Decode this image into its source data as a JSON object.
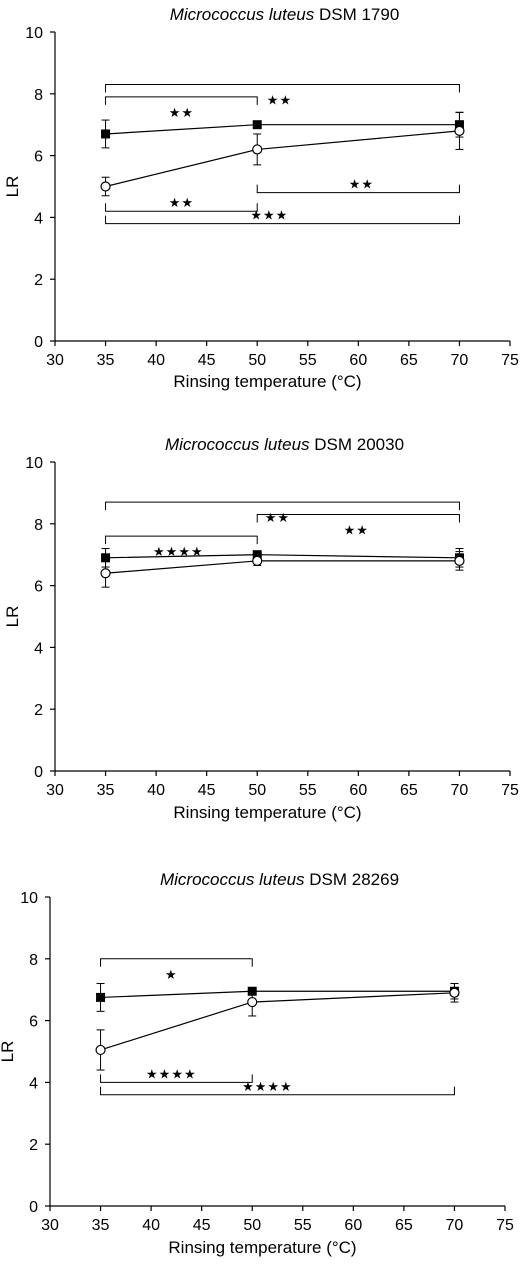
{
  "chart_data": [
    {
      "type": "line",
      "title_italic": "Micrococcus luteus",
      "title_rest": " DSM 1790",
      "xlabel": "Rinsing temperature (°C)",
      "ylabel": "LR",
      "xlim": [
        30,
        75
      ],
      "ylim": [
        0,
        10
      ],
      "xticks": [
        30,
        35,
        40,
        45,
        50,
        55,
        60,
        65,
        70,
        75
      ],
      "yticks": [
        0,
        2,
        4,
        6,
        8,
        10
      ],
      "grid": false,
      "x": [
        35,
        50,
        70
      ],
      "series": [
        {
          "marker": "filled-square",
          "values": [
            6.7,
            7.0,
            7.0
          ],
          "err": [
            0.45,
            0.1,
            0.4
          ]
        },
        {
          "marker": "open-circle",
          "values": [
            5.0,
            6.2,
            6.8
          ],
          "err": [
            0.3,
            0.5,
            0.6
          ]
        }
      ],
      "significance": [
        {
          "from": 35,
          "to": 70,
          "y": 8.3,
          "dir": "down",
          "stars": "★★",
          "star_x": 52.2
        },
        {
          "from": 35,
          "to": 50,
          "y": 7.9,
          "dir": "down",
          "stars": "★★",
          "star_x": 42.5
        },
        {
          "from": 50,
          "to": 70,
          "y": 4.8,
          "dir": "up",
          "stars": "★★",
          "star_x": 60.3
        },
        {
          "from": 35,
          "to": 50,
          "y": 4.2,
          "dir": "up",
          "stars": "★★",
          "star_x": 42.5
        },
        {
          "from": 35,
          "to": 70,
          "y": 3.8,
          "dir": "up",
          "stars": "★★★",
          "star_x": 51.2
        }
      ]
    },
    {
      "type": "line",
      "title_italic": "Micrococcus luteus",
      "title_rest": " DSM 20030",
      "xlabel": "Rinsing temperature (°C)",
      "ylabel": "LR",
      "xlim": [
        30,
        75
      ],
      "ylim": [
        0,
        10
      ],
      "xticks": [
        30,
        35,
        40,
        45,
        50,
        55,
        60,
        65,
        70,
        75
      ],
      "yticks": [
        0,
        2,
        4,
        6,
        8,
        10
      ],
      "grid": false,
      "x": [
        35,
        50,
        70
      ],
      "series": [
        {
          "marker": "filled-square",
          "values": [
            6.9,
            7.0,
            6.9
          ],
          "err": [
            0.3,
            0.1,
            0.3
          ]
        },
        {
          "marker": "open-circle",
          "values": [
            6.4,
            6.8,
            6.8
          ],
          "err": [
            0.45,
            0.15,
            0.3
          ]
        }
      ],
      "significance": [
        {
          "from": 35,
          "to": 70,
          "y": 8.7,
          "dir": "down",
          "stars": "★★",
          "star_x": 52.0
        },
        {
          "from": 35,
          "to": 50,
          "y": 7.6,
          "dir": "down",
          "stars": "★★★★",
          "star_x": 42.2
        },
        {
          "from": 50,
          "to": 70,
          "y": 8.3,
          "dir": "down",
          "stars": "★★",
          "star_x": 59.8
        }
      ]
    },
    {
      "type": "line",
      "title_italic": "Micrococcus luteus",
      "title_rest": " DSM 28269",
      "xlabel": "Rinsing temperature (°C)",
      "ylabel": "LR",
      "xlim": [
        30,
        75
      ],
      "ylim": [
        0,
        10
      ],
      "xticks": [
        30,
        35,
        40,
        45,
        50,
        55,
        60,
        65,
        70,
        75
      ],
      "yticks": [
        0,
        2,
        4,
        6,
        8,
        10
      ],
      "grid": false,
      "x": [
        35,
        50,
        70
      ],
      "series": [
        {
          "marker": "filled-square",
          "values": [
            6.75,
            6.95,
            6.95
          ],
          "err": [
            0.45,
            0.1,
            0.25
          ]
        },
        {
          "marker": "open-circle",
          "values": [
            5.05,
            6.6,
            6.9
          ],
          "err": [
            0.65,
            0.45,
            0.3
          ]
        }
      ],
      "significance": [
        {
          "from": 35,
          "to": 50,
          "y": 8.0,
          "dir": "down",
          "stars": "★",
          "star_x": 42.0
        },
        {
          "from": 35,
          "to": 50,
          "y": 4.0,
          "dir": "up",
          "stars": "★★★★",
          "star_x": 42.0
        },
        {
          "from": 35,
          "to": 70,
          "y": 3.6,
          "dir": "up",
          "stars": "★★★★",
          "star_x": 51.5
        }
      ]
    }
  ]
}
